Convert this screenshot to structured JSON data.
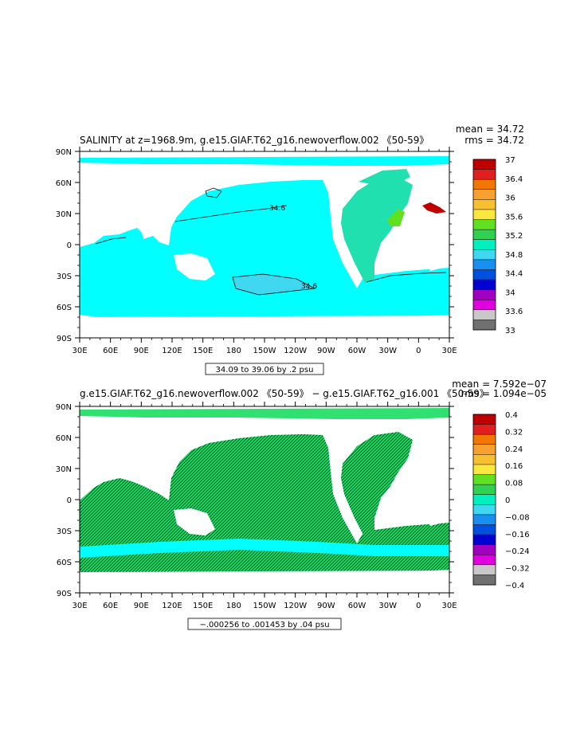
{
  "chart_data": [
    {
      "type": "heatmap",
      "title": "SALINITY at z=1968.9m, g.e15.GIAF.T62_g16.newoverflow.002 《50-59》",
      "stats": {
        "mean": "mean = 34.72",
        "rms": "rms = 34.72"
      },
      "x_ticks": [
        "30E",
        "60E",
        "90E",
        "120E",
        "150E",
        "180",
        "150W",
        "120W",
        "90W",
        "60W",
        "30W",
        "0",
        "30E"
      ],
      "y_ticks": [
        "90N",
        "60N",
        "30N",
        "0",
        "30S",
        "60S",
        "90S"
      ],
      "xlim": [
        30,
        390
      ],
      "ylim": [
        -90,
        90
      ],
      "info_box": "34.09 to 39.06 by .2 psu",
      "colorbar": {
        "labels": [
          "37",
          "36.4",
          "36",
          "35.6",
          "35.2",
          "34.8",
          "34.4",
          "34",
          "33.6",
          "33"
        ],
        "colors": [
          "#c00000",
          "#e02020",
          "#f07800",
          "#f8a030",
          "#f8c030",
          "#f8e840",
          "#60e020",
          "#30d050",
          "#00f0c0",
          "#40d8f0",
          "#1890f0",
          "#0050e0",
          "#0000d0",
          "#a000c0",
          "#e000e0",
          "#c8c8c8",
          "#707070"
        ]
      },
      "contour_labels": [
        "34.6",
        "34.6"
      ],
      "field_colors": {
        "ocean": "#00ffff",
        "atlantic": "#20e0b0",
        "med": "#c00000"
      }
    },
    {
      "type": "heatmap",
      "title": "g.e15.GIAF.T62_g16.newoverflow.002 《50-59》 − g.e15.GIAF.T62_g16.001 《50-59》",
      "stats": {
        "mean": "mean = 7.592e−07",
        "rms": "rms = 1.094e−05"
      },
      "x_ticks": [
        "30E",
        "60E",
        "90E",
        "120E",
        "150E",
        "180",
        "150W",
        "120W",
        "90W",
        "60W",
        "30W",
        "0",
        "30E"
      ],
      "y_ticks": [
        "90N",
        "60N",
        "30N",
        "0",
        "30S",
        "60S",
        "90S"
      ],
      "xlim": [
        30,
        390
      ],
      "ylim": [
        -90,
        90
      ],
      "info_box": "−.000256 to .001453 by .04 psu",
      "colorbar": {
        "labels": [
          "0.4",
          "0.32",
          "0.24",
          "0.16",
          "0.08",
          "0",
          "−0.08",
          "−0.16",
          "−0.24",
          "−0.32",
          "−0.4"
        ],
        "colors": [
          "#c00000",
          "#e02020",
          "#f07800",
          "#f8a030",
          "#f8c030",
          "#f8e840",
          "#60e020",
          "#30d050",
          "#00f0c0",
          "#40d8f0",
          "#1890f0",
          "#0050e0",
          "#0000d0",
          "#a000c0",
          "#e000e0",
          "#c8c8c8",
          "#707070"
        ]
      },
      "field_colors": {
        "ocean": "#20d868",
        "mid": "#30e070",
        "cyan": "#00ffff"
      }
    }
  ]
}
